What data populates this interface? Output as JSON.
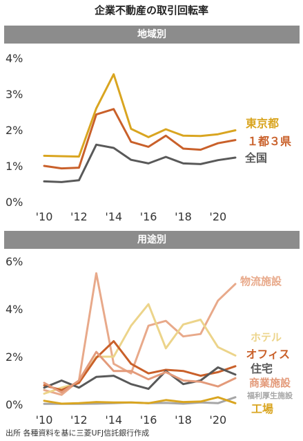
{
  "title": "企業不動産の取引回転率",
  "footnote": "出所 各種資料を基に三菱UFJ信託銀行作成",
  "chart_data": [
    {
      "type": "line",
      "panel_label": "地域別",
      "x": [
        2010,
        2011,
        2012,
        2013,
        2014,
        2015,
        2016,
        2017,
        2018,
        2019,
        2020,
        2021
      ],
      "x_tick_labels": [
        "'10",
        "'12",
        "'14",
        "'16",
        "'18",
        "'20"
      ],
      "y_tick_labels": [
        "0%",
        "1%",
        "2%",
        "3%",
        "4%"
      ],
      "ylim": [
        0,
        4
      ],
      "xlim": [
        2010,
        2021
      ],
      "grid": false,
      "series": [
        {
          "name": "東京都",
          "color": "#d9a520",
          "values": [
            1.28,
            1.27,
            1.26,
            2.6,
            3.55,
            2.03,
            1.8,
            2.02,
            1.84,
            1.83,
            1.88,
            1.99
          ]
        },
        {
          "name": "１都３県",
          "color": "#c9602a",
          "values": [
            1.0,
            0.93,
            0.95,
            2.43,
            2.58,
            1.67,
            1.53,
            1.84,
            1.48,
            1.45,
            1.63,
            1.72
          ]
        },
        {
          "name": "全国",
          "color": "#595959",
          "values": [
            0.57,
            0.55,
            0.6,
            1.59,
            1.5,
            1.17,
            1.07,
            1.25,
            1.07,
            1.05,
            1.16,
            1.23
          ]
        }
      ]
    },
    {
      "type": "line",
      "panel_label": "用途別",
      "x": [
        2010,
        2011,
        2012,
        2013,
        2014,
        2015,
        2016,
        2017,
        2018,
        2019,
        2020,
        2021
      ],
      "x_tick_labels": [
        "'10",
        "'12",
        "'14",
        "'16",
        "'18",
        "'20"
      ],
      "y_tick_labels": [
        "0%",
        "2%",
        "4%",
        "6%"
      ],
      "ylim": [
        0,
        6
      ],
      "xlim": [
        2010,
        2021
      ],
      "grid": false,
      "series": [
        {
          "name": "物流施設",
          "color": "#e8a98a",
          "values": [
            0.6,
            0.4,
            1.0,
            5.5,
            1.7,
            1.3,
            3.3,
            3.5,
            2.85,
            2.95,
            4.35,
            5.05
          ]
        },
        {
          "name": "ホテル",
          "color": "#ecd48a",
          "values": [
            0.45,
            0.7,
            0.9,
            2.0,
            2.0,
            3.3,
            4.2,
            2.35,
            3.35,
            3.55,
            2.4,
            2.05
          ]
        },
        {
          "name": "オフィス",
          "color": "#c9602a",
          "values": [
            0.8,
            0.6,
            0.9,
            1.95,
            2.65,
            1.7,
            1.3,
            1.45,
            1.4,
            1.2,
            1.35,
            1.6
          ]
        },
        {
          "name": "住宅",
          "color": "#595959",
          "values": [
            0.7,
            1.0,
            0.7,
            1.15,
            1.2,
            0.85,
            0.65,
            1.4,
            0.85,
            1.0,
            1.55,
            1.25
          ]
        },
        {
          "name": "商業施設",
          "color": "#e39a7a",
          "values": [
            0.9,
            0.5,
            1.0,
            2.2,
            1.4,
            1.4,
            1.05,
            1.35,
            1.0,
            0.95,
            0.75,
            1.1
          ]
        },
        {
          "name": "福利厚生施設",
          "color": "#a6a6a6",
          "values": [
            0.02,
            0.02,
            0.02,
            0.03,
            0.05,
            0.08,
            0.05,
            0.06,
            0.03,
            0.08,
            0.05,
            0.3
          ]
        },
        {
          "name": "工場",
          "color": "#d9a520",
          "values": [
            0.15,
            0.03,
            0.05,
            0.1,
            0.08,
            0.08,
            0.05,
            0.18,
            0.1,
            0.12,
            0.3,
            0.05
          ]
        }
      ]
    }
  ]
}
